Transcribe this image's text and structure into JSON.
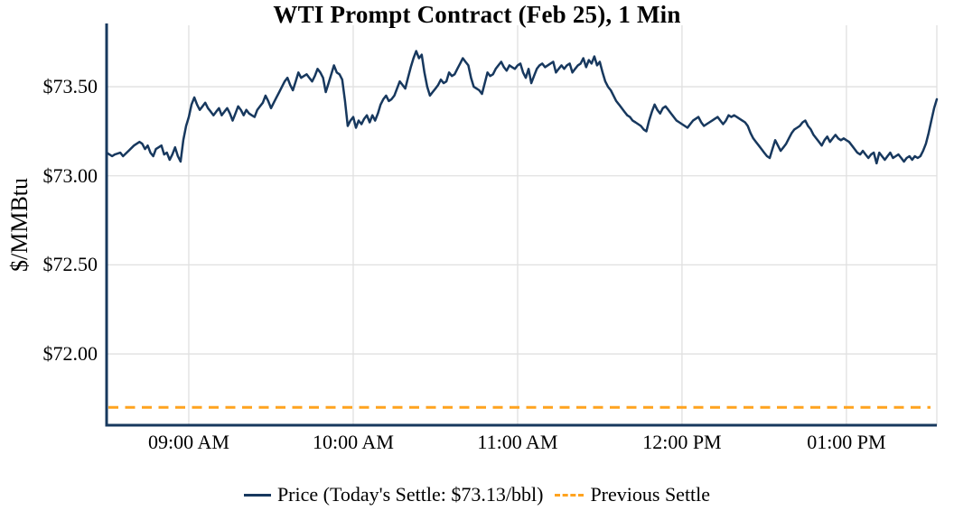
{
  "page": {
    "background": "#ffffff"
  },
  "chart": {
    "title": "WTI Prompt Contract (Feb 25), 1 Min",
    "y_axis_label": "$/MMBtu"
  },
  "legend": {
    "items": [
      {
        "label": "Price (Today's Settle: $73.13/bbl)",
        "style": "solid",
        "color": "#17385e"
      },
      {
        "label": "Previous Settle",
        "style": "dashed",
        "color": "#ffa31f"
      }
    ]
  },
  "colors": {
    "price_line": "#17385e",
    "previous_settle_line": "#ffa31f",
    "axis": "#17385e",
    "grid": "#e0e0e0",
    "text": "#000000",
    "background": "#ffffff"
  },
  "chart_data": {
    "type": "line",
    "title": "WTI Prompt Contract (Feb 25), 1 Min",
    "xlabel": "",
    "ylabel": "$/MMBtu",
    "grid": true,
    "legend_position": "bottom",
    "x_unit": "minutes after 08:30 AM",
    "x_domain_minutes": [
      0,
      303
    ],
    "y_domain": [
      71.6,
      73.845
    ],
    "x_ticks": [
      {
        "minute": 30,
        "label": "09:00 AM"
      },
      {
        "minute": 90,
        "label": "10:00 AM"
      },
      {
        "minute": 150,
        "label": "11:00 AM"
      },
      {
        "minute": 210,
        "label": "12:00 PM"
      },
      {
        "minute": 270,
        "label": "01:00 PM"
      }
    ],
    "y_ticks": [
      {
        "value": 73.5,
        "label": "$73.50"
      },
      {
        "value": 73.0,
        "label": "$73.00"
      },
      {
        "value": 72.5,
        "label": "$72.50"
      },
      {
        "value": 72.0,
        "label": "$72.00"
      }
    ],
    "series": [
      {
        "name": "Price (Today's Settle: $73.13/bbl)",
        "type": "line",
        "style": "solid",
        "color": "#17385e",
        "today_settle": 73.13,
        "points_minutes_price": [
          [
            0,
            73.13
          ],
          [
            2,
            73.11
          ],
          [
            3,
            73.12
          ],
          [
            5,
            73.13
          ],
          [
            6,
            73.11
          ],
          [
            8,
            73.14
          ],
          [
            10,
            73.17
          ],
          [
            12,
            73.19
          ],
          [
            13,
            73.18
          ],
          [
            14,
            73.15
          ],
          [
            15,
            73.17
          ],
          [
            16,
            73.13
          ],
          [
            17,
            73.11
          ],
          [
            18,
            73.15
          ],
          [
            19,
            73.16
          ],
          [
            20,
            73.17
          ],
          [
            21,
            73.12
          ],
          [
            22,
            73.13
          ],
          [
            23,
            73.09
          ],
          [
            24,
            73.12
          ],
          [
            25,
            73.16
          ],
          [
            26,
            73.11
          ],
          [
            27,
            73.08
          ],
          [
            28,
            73.2
          ],
          [
            29,
            73.28
          ],
          [
            30,
            73.33
          ],
          [
            31,
            73.4
          ],
          [
            32,
            73.44
          ],
          [
            33,
            73.4
          ],
          [
            34,
            73.37
          ],
          [
            35,
            73.39
          ],
          [
            36,
            73.41
          ],
          [
            37,
            73.38
          ],
          [
            38,
            73.36
          ],
          [
            39,
            73.34
          ],
          [
            40,
            73.36
          ],
          [
            41,
            73.38
          ],
          [
            42,
            73.34
          ],
          [
            43,
            73.36
          ],
          [
            44,
            73.38
          ],
          [
            45,
            73.35
          ],
          [
            46,
            73.31
          ],
          [
            47,
            73.35
          ],
          [
            48,
            73.39
          ],
          [
            49,
            73.37
          ],
          [
            50,
            73.34
          ],
          [
            51,
            73.37
          ],
          [
            52,
            73.35
          ],
          [
            53,
            73.34
          ],
          [
            54,
            73.33
          ],
          [
            55,
            73.37
          ],
          [
            56,
            73.39
          ],
          [
            57,
            73.41
          ],
          [
            58,
            73.45
          ],
          [
            59,
            73.42
          ],
          [
            60,
            73.38
          ],
          [
            61,
            73.41
          ],
          [
            62,
            73.44
          ],
          [
            63,
            73.47
          ],
          [
            64,
            73.5
          ],
          [
            65,
            73.53
          ],
          [
            66,
            73.55
          ],
          [
            67,
            73.51
          ],
          [
            68,
            73.48
          ],
          [
            69,
            73.53
          ],
          [
            70,
            73.58
          ],
          [
            71,
            73.55
          ],
          [
            72,
            73.56
          ],
          [
            73,
            73.57
          ],
          [
            74,
            73.55
          ],
          [
            75,
            73.53
          ],
          [
            76,
            73.56
          ],
          [
            77,
            73.6
          ],
          [
            78,
            73.58
          ],
          [
            79,
            73.55
          ],
          [
            80,
            73.47
          ],
          [
            81,
            73.52
          ],
          [
            82,
            73.57
          ],
          [
            83,
            73.62
          ],
          [
            84,
            73.58
          ],
          [
            85,
            73.57
          ],
          [
            86,
            73.54
          ],
          [
            87,
            73.42
          ],
          [
            88,
            73.28
          ],
          [
            89,
            73.31
          ],
          [
            90,
            73.33
          ],
          [
            91,
            73.27
          ],
          [
            92,
            73.31
          ],
          [
            93,
            73.29
          ],
          [
            94,
            73.32
          ],
          [
            95,
            73.34
          ],
          [
            96,
            73.3
          ],
          [
            97,
            73.34
          ],
          [
            98,
            73.31
          ],
          [
            99,
            73.35
          ],
          [
            100,
            73.4
          ],
          [
            101,
            73.43
          ],
          [
            102,
            73.45
          ],
          [
            103,
            73.42
          ],
          [
            104,
            73.43
          ],
          [
            105,
            73.45
          ],
          [
            106,
            73.49
          ],
          [
            107,
            73.53
          ],
          [
            108,
            73.51
          ],
          [
            109,
            73.49
          ],
          [
            110,
            73.55
          ],
          [
            111,
            73.61
          ],
          [
            112,
            73.66
          ],
          [
            113,
            73.7
          ],
          [
            114,
            73.66
          ],
          [
            115,
            73.68
          ],
          [
            116,
            73.58
          ],
          [
            117,
            73.5
          ],
          [
            118,
            73.45
          ],
          [
            119,
            73.47
          ],
          [
            120,
            73.49
          ],
          [
            121,
            73.51
          ],
          [
            122,
            73.54
          ],
          [
            123,
            73.52
          ],
          [
            124,
            73.53
          ],
          [
            125,
            73.58
          ],
          [
            126,
            73.56
          ],
          [
            127,
            73.57
          ],
          [
            128,
            73.6
          ],
          [
            129,
            73.63
          ],
          [
            130,
            73.66
          ],
          [
            131,
            73.64
          ],
          [
            132,
            73.62
          ],
          [
            133,
            73.55
          ],
          [
            134,
            73.5
          ],
          [
            135,
            73.49
          ],
          [
            136,
            73.48
          ],
          [
            137,
            73.46
          ],
          [
            138,
            73.52
          ],
          [
            139,
            73.58
          ],
          [
            140,
            73.56
          ],
          [
            141,
            73.57
          ],
          [
            142,
            73.6
          ],
          [
            143,
            73.62
          ],
          [
            144,
            73.64
          ],
          [
            145,
            73.61
          ],
          [
            146,
            73.59
          ],
          [
            147,
            73.62
          ],
          [
            148,
            73.61
          ],
          [
            149,
            73.6
          ],
          [
            150,
            73.62
          ],
          [
            151,
            73.63
          ],
          [
            152,
            73.58
          ],
          [
            153,
            73.55
          ],
          [
            154,
            73.6
          ],
          [
            155,
            73.52
          ],
          [
            156,
            73.56
          ],
          [
            157,
            73.6
          ],
          [
            158,
            73.62
          ],
          [
            159,
            73.63
          ],
          [
            160,
            73.61
          ],
          [
            161,
            73.62
          ],
          [
            162,
            73.63
          ],
          [
            163,
            73.64
          ],
          [
            164,
            73.58
          ],
          [
            165,
            73.6
          ],
          [
            166,
            73.62
          ],
          [
            167,
            73.6
          ],
          [
            168,
            73.62
          ],
          [
            169,
            73.63
          ],
          [
            170,
            73.58
          ],
          [
            171,
            73.6
          ],
          [
            172,
            73.62
          ],
          [
            173,
            73.63
          ],
          [
            174,
            73.66
          ],
          [
            175,
            73.61
          ],
          [
            176,
            73.65
          ],
          [
            177,
            73.63
          ],
          [
            178,
            73.67
          ],
          [
            179,
            73.62
          ],
          [
            180,
            73.64
          ],
          [
            181,
            73.58
          ],
          [
            182,
            73.53
          ],
          [
            183,
            73.5
          ],
          [
            184,
            73.48
          ],
          [
            185,
            73.45
          ],
          [
            186,
            73.42
          ],
          [
            187,
            73.4
          ],
          [
            188,
            73.38
          ],
          [
            189,
            73.36
          ],
          [
            190,
            73.34
          ],
          [
            191,
            73.33
          ],
          [
            192,
            73.31
          ],
          [
            193,
            73.3
          ],
          [
            194,
            73.29
          ],
          [
            195,
            73.28
          ],
          [
            196,
            73.26
          ],
          [
            197,
            73.25
          ],
          [
            198,
            73.31
          ],
          [
            199,
            73.36
          ],
          [
            200,
            73.4
          ],
          [
            201,
            73.37
          ],
          [
            202,
            73.35
          ],
          [
            203,
            73.38
          ],
          [
            204,
            73.39
          ],
          [
            205,
            73.37
          ],
          [
            206,
            73.35
          ],
          [
            207,
            73.33
          ],
          [
            208,
            73.31
          ],
          [
            209,
            73.3
          ],
          [
            210,
            73.29
          ],
          [
            211,
            73.28
          ],
          [
            212,
            73.27
          ],
          [
            213,
            73.29
          ],
          [
            214,
            73.31
          ],
          [
            215,
            73.32
          ],
          [
            216,
            73.33
          ],
          [
            217,
            73.3
          ],
          [
            218,
            73.28
          ],
          [
            219,
            73.29
          ],
          [
            220,
            73.3
          ],
          [
            221,
            73.31
          ],
          [
            222,
            73.32
          ],
          [
            223,
            73.33
          ],
          [
            224,
            73.31
          ],
          [
            225,
            73.29
          ],
          [
            226,
            73.31
          ],
          [
            227,
            73.34
          ],
          [
            228,
            73.33
          ],
          [
            229,
            73.34
          ],
          [
            230,
            73.33
          ],
          [
            231,
            73.32
          ],
          [
            232,
            73.31
          ],
          [
            233,
            73.3
          ],
          [
            234,
            73.28
          ],
          [
            235,
            73.24
          ],
          [
            236,
            73.21
          ],
          [
            237,
            73.19
          ],
          [
            238,
            73.17
          ],
          [
            239,
            73.15
          ],
          [
            240,
            73.13
          ],
          [
            241,
            73.11
          ],
          [
            242,
            73.1
          ],
          [
            243,
            73.15
          ],
          [
            244,
            73.2
          ],
          [
            245,
            73.17
          ],
          [
            246,
            73.14
          ],
          [
            247,
            73.16
          ],
          [
            248,
            73.18
          ],
          [
            249,
            73.21
          ],
          [
            250,
            73.24
          ],
          [
            251,
            73.26
          ],
          [
            252,
            73.27
          ],
          [
            253,
            73.28
          ],
          [
            254,
            73.3
          ],
          [
            255,
            73.31
          ],
          [
            256,
            73.28
          ],
          [
            257,
            73.26
          ],
          [
            258,
            73.23
          ],
          [
            259,
            73.21
          ],
          [
            260,
            73.19
          ],
          [
            261,
            73.17
          ],
          [
            262,
            73.2
          ],
          [
            263,
            73.22
          ],
          [
            264,
            73.19
          ],
          [
            265,
            73.21
          ],
          [
            266,
            73.23
          ],
          [
            267,
            73.21
          ],
          [
            268,
            73.2
          ],
          [
            269,
            73.21
          ],
          [
            270,
            73.2
          ],
          [
            271,
            73.19
          ],
          [
            272,
            73.17
          ],
          [
            273,
            73.15
          ],
          [
            274,
            73.13
          ],
          [
            275,
            73.12
          ],
          [
            276,
            73.14
          ],
          [
            277,
            73.12
          ],
          [
            278,
            73.1
          ],
          [
            279,
            73.12
          ],
          [
            280,
            73.13
          ],
          [
            281,
            73.07
          ],
          [
            282,
            73.13
          ],
          [
            283,
            73.11
          ],
          [
            284,
            73.09
          ],
          [
            285,
            73.11
          ],
          [
            286,
            73.13
          ],
          [
            287,
            73.1
          ],
          [
            288,
            73.11
          ],
          [
            289,
            73.12
          ],
          [
            290,
            73.1
          ],
          [
            291,
            73.08
          ],
          [
            292,
            73.1
          ],
          [
            293,
            73.11
          ],
          [
            294,
            73.09
          ],
          [
            295,
            73.11
          ],
          [
            296,
            73.1
          ],
          [
            297,
            73.11
          ],
          [
            298,
            73.14
          ],
          [
            299,
            73.18
          ],
          [
            300,
            73.24
          ],
          [
            301,
            73.31
          ],
          [
            302,
            73.38
          ],
          [
            303,
            73.43
          ]
        ]
      },
      {
        "name": "Previous Settle",
        "type": "hline",
        "style": "dashed",
        "color": "#ffa31f",
        "value": 71.7
      }
    ]
  }
}
